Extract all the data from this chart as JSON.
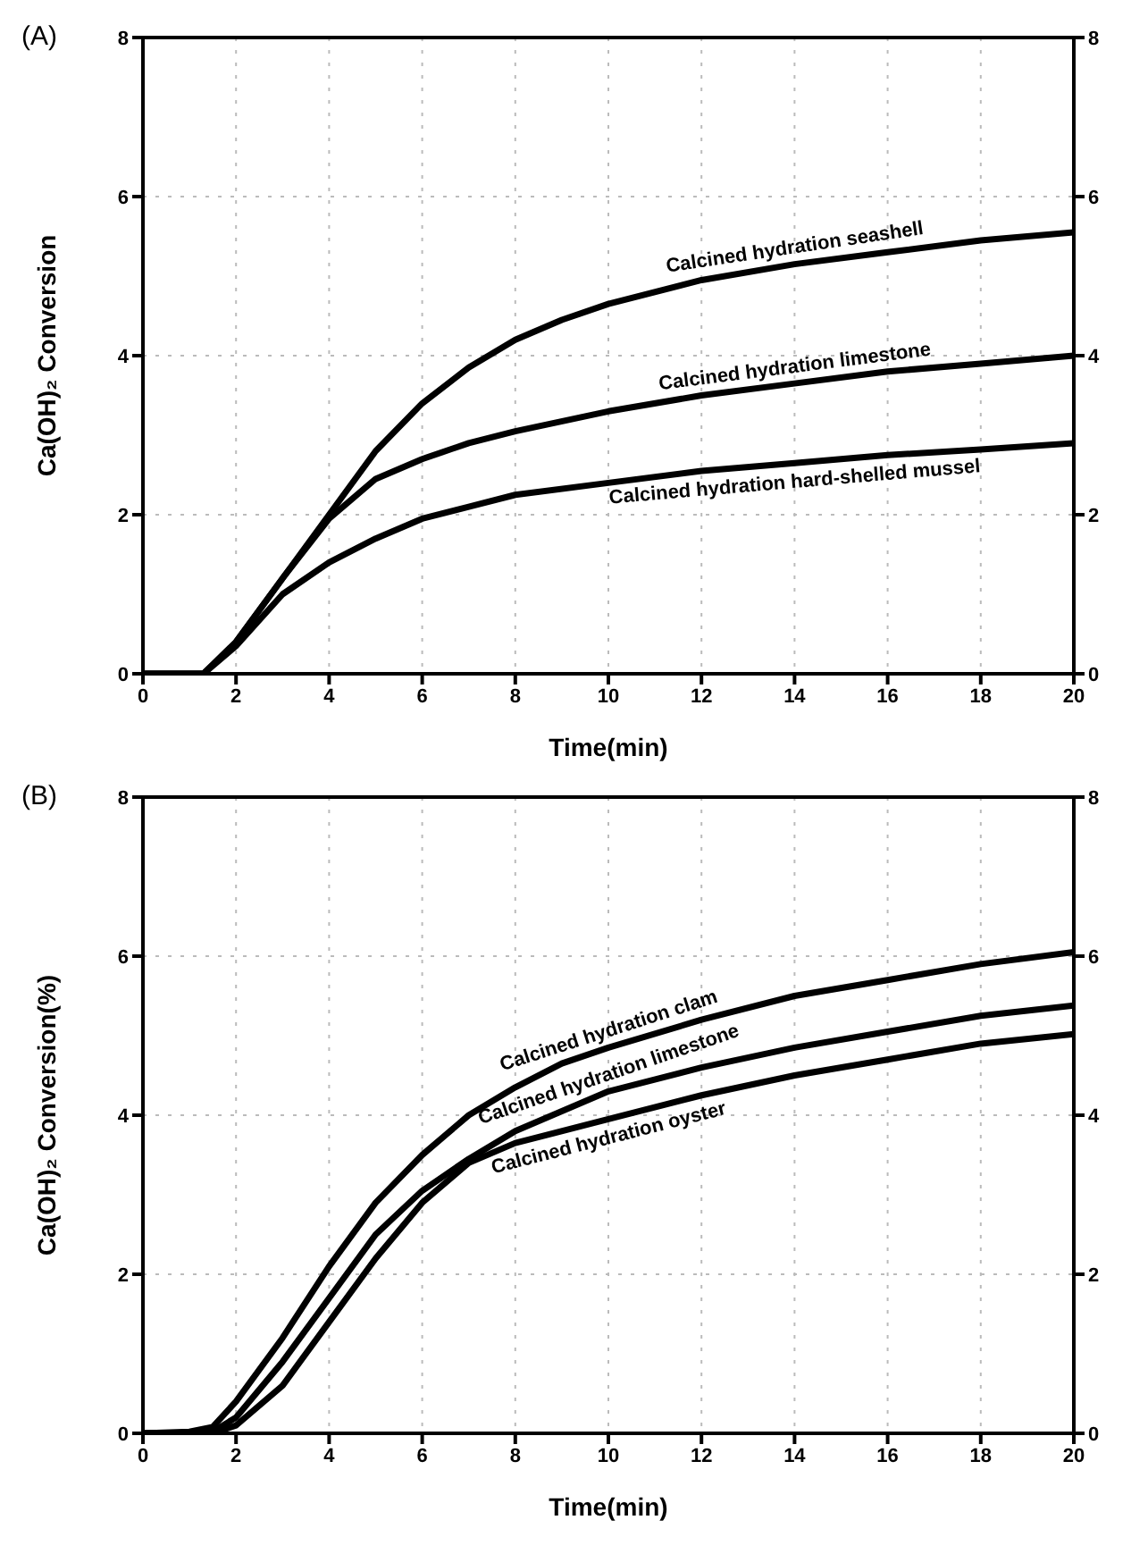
{
  "chart_data": [
    {
      "type": "line",
      "title": "(A)",
      "xlabel": "Time(min)",
      "ylabel": "Ca(OH)₂ Conversion",
      "xlim": [
        0,
        20
      ],
      "xticks": [
        0,
        2,
        4,
        6,
        8,
        10,
        12,
        14,
        16,
        18,
        20
      ],
      "ylim": [
        0,
        8
      ],
      "yticks": [
        0,
        2,
        4,
        6,
        8
      ],
      "y2lim": [
        0,
        8
      ],
      "y2ticks": [
        0,
        2,
        4,
        6,
        8
      ],
      "grid": true,
      "legend": false,
      "marker": "none",
      "line_style": "solid",
      "series": [
        {
          "name": "Calcined hydration seashell",
          "color": "#000000",
          "x": [
            0,
            1,
            1.3,
            2,
            3,
            4,
            5,
            6,
            7,
            8,
            9,
            10,
            12,
            14,
            16,
            18,
            20
          ],
          "values": [
            0,
            0,
            0,
            0.4,
            1.2,
            2.0,
            2.8,
            3.4,
            3.85,
            4.2,
            4.45,
            4.65,
            4.95,
            5.15,
            5.3,
            5.45,
            5.55
          ]
        },
        {
          "name": "Calcined hydration limestone",
          "color": "#000000",
          "x": [
            0,
            1,
            1.3,
            2,
            3,
            4,
            4.5,
            5,
            6,
            7,
            8,
            10,
            12,
            14,
            16,
            18,
            20
          ],
          "values": [
            0,
            0,
            0,
            0.4,
            1.2,
            1.95,
            2.2,
            2.45,
            2.7,
            2.9,
            3.05,
            3.3,
            3.5,
            3.65,
            3.8,
            3.9,
            4.0
          ]
        },
        {
          "name": "Calcined hydration hard-shelled mussel",
          "color": "#000000",
          "x": [
            0,
            1,
            1.3,
            2,
            3,
            4,
            5,
            6,
            7,
            8,
            10,
            12,
            14,
            16,
            18,
            20
          ],
          "values": [
            0,
            0,
            0,
            0.35,
            1.0,
            1.4,
            1.7,
            1.95,
            2.1,
            2.25,
            2.4,
            2.55,
            2.65,
            2.75,
            2.82,
            2.9
          ]
        }
      ]
    },
    {
      "type": "line",
      "title": "(B)",
      "xlabel": "Time(min)",
      "ylabel": "Ca(OH)₂ Conversion(%)",
      "xlim": [
        0,
        20
      ],
      "xticks": [
        0,
        2,
        4,
        6,
        8,
        10,
        12,
        14,
        16,
        18,
        20
      ],
      "ylim": [
        0,
        8
      ],
      "yticks": [
        0,
        2,
        4,
        6,
        8
      ],
      "y2lim": [
        0,
        8
      ],
      "y2ticks": [
        0,
        2,
        4,
        6,
        8
      ],
      "grid": true,
      "legend": false,
      "marker": "none",
      "line_style": "solid",
      "series": [
        {
          "name": "Calcined hydration clam",
          "color": "#000000",
          "x": [
            0,
            1,
            1.5,
            2,
            3,
            4,
            5,
            6,
            7,
            8,
            9,
            10,
            12,
            14,
            16,
            18,
            20
          ],
          "values": [
            0,
            0.02,
            0.08,
            0.4,
            1.2,
            2.1,
            2.9,
            3.5,
            4.0,
            4.35,
            4.65,
            4.85,
            5.2,
            5.5,
            5.7,
            5.9,
            6.05
          ]
        },
        {
          "name": "Calcined hydration limestone",
          "color": "#000000",
          "x": [
            0,
            1,
            1.5,
            2,
            3,
            4,
            5,
            6,
            7,
            8,
            10,
            12,
            14,
            16,
            18,
            20
          ],
          "values": [
            0,
            0,
            0.02,
            0.2,
            0.9,
            1.7,
            2.5,
            3.05,
            3.45,
            3.8,
            4.3,
            4.6,
            4.85,
            5.05,
            5.25,
            5.38
          ]
        },
        {
          "name": "Calcined hydration oyster",
          "color": "#000000",
          "x": [
            0,
            1,
            1.5,
            2,
            3,
            4,
            5,
            6,
            7,
            8,
            10,
            12,
            14,
            16,
            18,
            20
          ],
          "values": [
            0,
            0,
            0,
            0.1,
            0.6,
            1.4,
            2.2,
            2.9,
            3.4,
            3.65,
            3.95,
            4.25,
            4.5,
            4.7,
            4.9,
            5.02
          ]
        }
      ]
    }
  ]
}
